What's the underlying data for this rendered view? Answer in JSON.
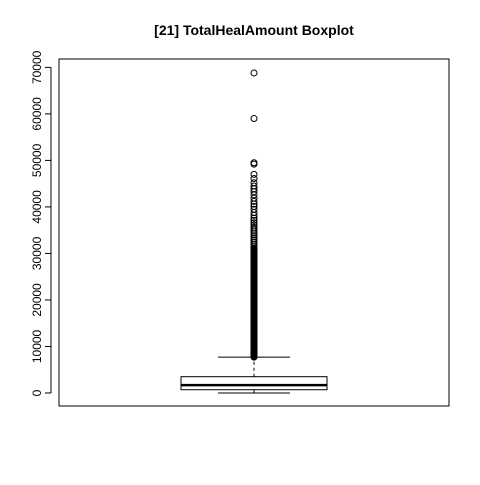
{
  "chart_data": {
    "type": "boxplot",
    "title": "[21] TotalHealAmount Boxplot",
    "xlabel": "",
    "ylabel": "",
    "ylim": [
      -2800,
      71800
    ],
    "yticks": [
      0,
      10000,
      20000,
      30000,
      40000,
      50000,
      60000,
      70000
    ],
    "ytick_labels": [
      "0",
      "10000",
      "20000",
      "30000",
      "40000",
      "50000",
      "60000",
      "70000"
    ],
    "grid": false,
    "legend": "none",
    "box": {
      "min": 0,
      "q1": 700,
      "median": 1700,
      "q3": 3500,
      "whisker_high": 7700
    },
    "outliers_dense_range": [
      7700,
      31000
    ],
    "outliers": [
      31200,
      31600,
      32000,
      32400,
      32800,
      33200,
      33600,
      34000,
      34400,
      34800,
      35200,
      35600,
      36100,
      36600,
      37100,
      37600,
      38200,
      38800,
      39500,
      40100,
      40600,
      41200,
      41900,
      42600,
      43300,
      43900,
      44500,
      45200,
      46100,
      47000,
      49200,
      49500,
      59000,
      68800
    ],
    "colors": {
      "stroke": "#000000",
      "background": "#ffffff"
    }
  }
}
